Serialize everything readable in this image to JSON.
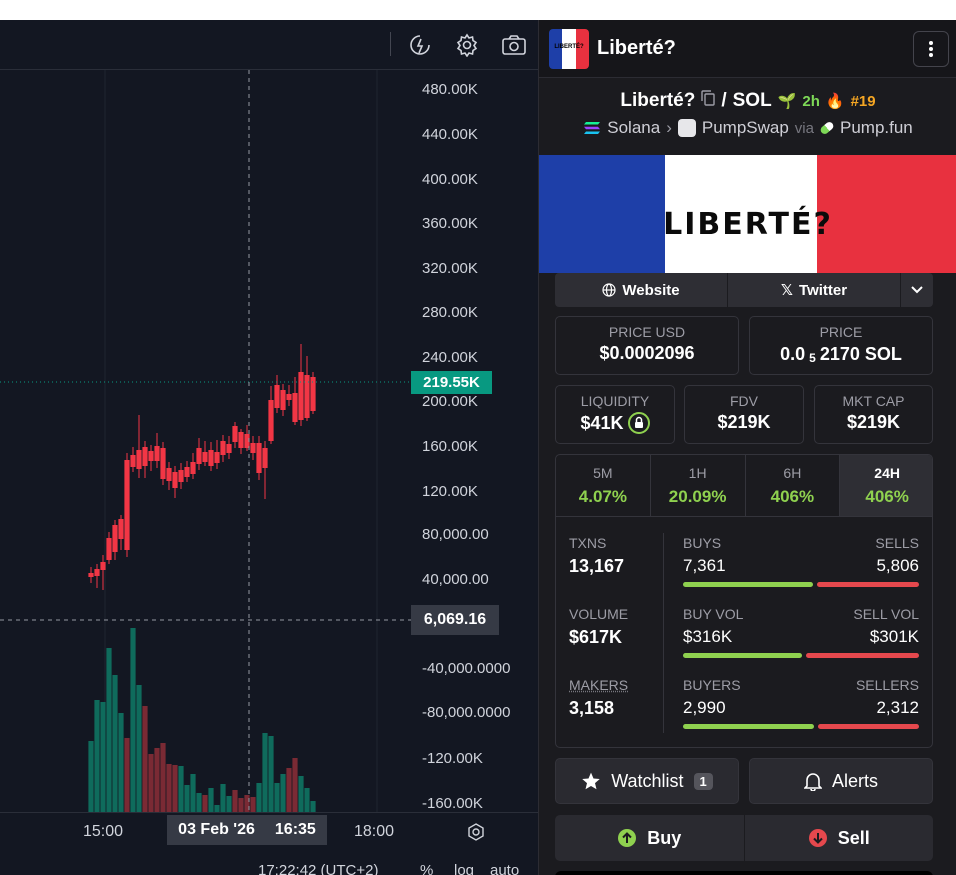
{
  "chart": {
    "price_axis": [
      "480.00K",
      "440.00K",
      "400.00K",
      "360.00K",
      "320.00K",
      "280.00K",
      "240.00K",
      "200.00K",
      "160.00K",
      "120.00K",
      "80,000.00",
      "40,000.00",
      "-40,000.0000",
      "-80,000.0000",
      "-120.00K",
      "-160.00K"
    ],
    "last_price": "219.55K",
    "crosshair_value": "6,069.16",
    "time_axis": [
      "15:00",
      "18:00"
    ],
    "crosshair_date": "03 Feb '26",
    "crosshair_time": "16:35",
    "bottom_clock": "17:22:42 (UTC+2)",
    "bottom_percent": "%",
    "bottom_log": "log",
    "bottom_auto": "auto",
    "colors": {
      "up": "#089981",
      "down": "#f23645"
    }
  },
  "token": {
    "header_name": "Liberté?",
    "thumb_text": "LIBERTÉ?",
    "name": "Liberté?",
    "quote": "SOL",
    "age": "2h",
    "rank": "#19",
    "chain": "Solana",
    "dex": "PumpSwap",
    "via": "via",
    "launchpad": "Pump.fun",
    "banner_text": "LIBERTÉ?"
  },
  "links": {
    "website": "Website",
    "twitter": "Twitter"
  },
  "prices": {
    "usd_label": "PRICE USD",
    "usd_value": "$0.0002096",
    "sol_label": "PRICE",
    "sol_prefix": "0.0",
    "sol_sub": "5",
    "sol_rest": "2170 SOL"
  },
  "metrics": {
    "liquidity_label": "LIQUIDITY",
    "liquidity_value": "$41K",
    "fdv_label": "FDV",
    "fdv_value": "$219K",
    "mcap_label": "MKT CAP",
    "mcap_value": "$219K"
  },
  "tabs": [
    {
      "label": "5M",
      "value": "4.07%"
    },
    {
      "label": "1H",
      "value": "20.09%"
    },
    {
      "label": "6H",
      "value": "406%"
    },
    {
      "label": "24H",
      "value": "406%"
    }
  ],
  "stats": {
    "txns_label": "TXNS",
    "txns_value": "13,167",
    "buys_label": "BUYS",
    "buys_value": "7,361",
    "sells_label": "SELLS",
    "sells_value": "5,806",
    "volume_label": "VOLUME",
    "volume_value": "$617K",
    "buyvol_label": "BUY VOL",
    "buyvol_value": "$316K",
    "sellvol_label": "SELL VOL",
    "sellvol_value": "$301K",
    "makers_label": "MAKERS",
    "makers_value": "3,158",
    "buyers_label": "BUYERS",
    "buyers_value": "2,990",
    "sellers_label": "SELLERS",
    "sellers_value": "2,312"
  },
  "actions": {
    "watchlist": "Watchlist",
    "watchlist_count": "1",
    "alerts": "Alerts",
    "buy": "Buy",
    "sell": "Sell"
  }
}
